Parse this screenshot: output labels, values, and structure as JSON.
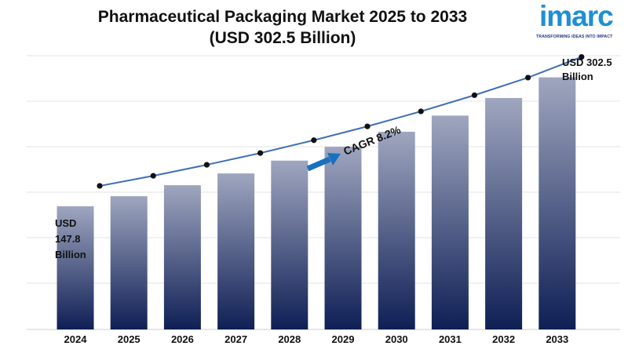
{
  "header": {
    "title_line1": "Pharmaceutical Packaging Market 2025 to 2033",
    "title_line2": "(USD 302.5 Billion)"
  },
  "logo": {
    "wordmark": "imarc",
    "tagline": "TRANSFORMING IDEAS INTO IMPACT",
    "color": "#1e8fd4"
  },
  "chart_data": {
    "type": "bar",
    "categories": [
      "2024",
      "2025",
      "2026",
      "2027",
      "2028",
      "2029",
      "2030",
      "2031",
      "2032",
      "2033"
    ],
    "values": [
      147.8,
      159.9,
      173.1,
      187.2,
      202.6,
      219.2,
      237.2,
      256.6,
      277.7,
      302.5
    ],
    "trend_line": true,
    "start_label": [
      "USD",
      "147.8",
      "Billion"
    ],
    "end_label": [
      "USD 302.5",
      "Billion"
    ],
    "cagr_label": "CAGR 8.2%",
    "ylim": [
      0,
      320
    ],
    "grid": true,
    "bar_gradient": [
      "#9fa6bf",
      "#0f1f55"
    ],
    "line_color": "#3f6fb5",
    "arrow_color": "#1a6fbf"
  }
}
